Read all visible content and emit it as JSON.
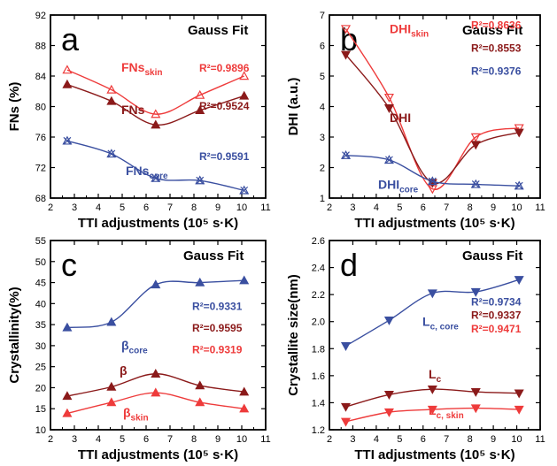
{
  "chart_data": [
    {
      "panel": "a",
      "type": "scatter",
      "fit_label": "Gauss Fit",
      "xlabel": "TTI adjustments (10⁵ s·K)",
      "ylabel": "FNs (%)",
      "xlim": [
        2,
        11
      ],
      "ylim": [
        68,
        92
      ],
      "xticks": [
        "2",
        "3",
        "4",
        "5",
        "6",
        "7",
        "8",
        "9",
        "10",
        "11"
      ],
      "yticks": [
        "68",
        "72",
        "76",
        "80",
        "84",
        "88",
        "92"
      ],
      "series": [
        {
          "name": "FNs",
          "sub": "skin",
          "color": "#ee3b3b",
          "marker": "triangle-up-open",
          "x": [
            2.7,
            4.55,
            6.4,
            8.25,
            10.1
          ],
          "y": [
            84.8,
            82.2,
            79.0,
            81.5,
            84.0
          ],
          "fit": [
            84.6,
            79.0,
            84.2
          ],
          "r2": "R²=0.9896"
        },
        {
          "name": "FNs",
          "sub": "",
          "color": "#8b1a1a",
          "marker": "triangle-up-filled",
          "x": [
            2.7,
            4.55,
            6.4,
            8.25,
            10.1
          ],
          "y": [
            82.9,
            80.7,
            77.6,
            79.5,
            81.4
          ],
          "fit": [
            82.6,
            77.6,
            81.4
          ],
          "r2": "R²=0.9524"
        },
        {
          "name": "FNs",
          "sub": "core",
          "color": "#3a4fa0",
          "marker": "x-triangle",
          "x": [
            2.7,
            4.55,
            6.4,
            8.25,
            10.1
          ],
          "y": [
            75.5,
            73.8,
            70.6,
            70.3,
            69.0
          ],
          "fit": [
            75.4,
            69.0
          ],
          "r2": "R²=0.9591"
        }
      ]
    },
    {
      "panel": "b",
      "type": "scatter",
      "fit_label": "Gauss Fit",
      "xlabel": "TTI adjustments (10⁵ s·K)",
      "ylabel": "DHI (a.u.)",
      "xlim": [
        2,
        11
      ],
      "ylim": [
        1,
        7
      ],
      "xticks": [
        "2",
        "3",
        "4",
        "5",
        "6",
        "7",
        "8",
        "9",
        "10",
        "11"
      ],
      "yticks": [
        "1",
        "2",
        "3",
        "4",
        "5",
        "6",
        "7"
      ],
      "series": [
        {
          "name": "DHI",
          "sub": "skin",
          "color": "#ee3b3b",
          "marker": "triangle-down-open",
          "x": [
            2.7,
            4.55,
            6.4,
            8.25,
            10.1
          ],
          "y": [
            6.55,
            4.3,
            1.3,
            3.0,
            3.3
          ],
          "r2": "R²=0.8636"
        },
        {
          "name": "DHI",
          "sub": "",
          "color": "#8b1a1a",
          "marker": "triangle-down-filled",
          "x": [
            2.7,
            4.55,
            6.4,
            8.25,
            10.1
          ],
          "y": [
            5.7,
            3.95,
            1.5,
            2.75,
            3.15
          ],
          "r2": "R²=0.8553"
        },
        {
          "name": "DHI",
          "sub": "core",
          "color": "#3a4fa0",
          "marker": "x-triangle",
          "x": [
            2.7,
            4.55,
            6.4,
            8.25,
            10.1
          ],
          "y": [
            2.4,
            2.25,
            1.55,
            1.45,
            1.4
          ],
          "r2": "R²=0.9376"
        }
      ]
    },
    {
      "panel": "c",
      "type": "scatter",
      "fit_label": "Gauss Fit",
      "xlabel": "TTI adjustments (10⁵ s·K)",
      "ylabel": "Crystallinity(%)",
      "xlim": [
        2,
        11
      ],
      "ylim": [
        10,
        55
      ],
      "xticks": [
        "2",
        "3",
        "4",
        "5",
        "6",
        "7",
        "8",
        "9",
        "10",
        "11"
      ],
      "yticks": [
        "10",
        "15",
        "20",
        "25",
        "30",
        "35",
        "40",
        "45",
        "50",
        "55"
      ],
      "series": [
        {
          "name": "β",
          "sub": "core",
          "color": "#3a4fa0",
          "marker": "triangle-up-filled",
          "x": [
            2.7,
            4.55,
            6.4,
            8.25,
            10.1
          ],
          "y": [
            34.3,
            35.6,
            44.5,
            45.0,
            45.5
          ],
          "r2": "R²=0.9331"
        },
        {
          "name": "β",
          "sub": "",
          "color": "#8b1a1a",
          "marker": "triangle-up-filled",
          "x": [
            2.7,
            4.55,
            6.4,
            8.25,
            10.1
          ],
          "y": [
            18.0,
            20.2,
            23.3,
            20.5,
            19.0
          ],
          "r2": "R²=0.9595"
        },
        {
          "name": "β",
          "sub": "skin",
          "color": "#ee3b3b",
          "marker": "triangle-up-filled",
          "x": [
            2.7,
            4.55,
            6.4,
            8.25,
            10.1
          ],
          "y": [
            13.9,
            16.5,
            18.8,
            16.5,
            15.0
          ],
          "r2": "R²=0.9319"
        }
      ]
    },
    {
      "panel": "d",
      "type": "scatter",
      "fit_label": "Gauss Fit",
      "xlabel": "TTI adjustments (10⁵ s·K)",
      "ylabel": "Crystallite size(nm)",
      "xlim": [
        2,
        11
      ],
      "ylim": [
        1.2,
        2.6
      ],
      "xticks": [
        "2",
        "3",
        "4",
        "5",
        "6",
        "7",
        "8",
        "9",
        "10",
        "11"
      ],
      "yticks": [
        "1.2",
        "1.4",
        "1.6",
        "1.8",
        "2.0",
        "2.2",
        "2.4",
        "2.6"
      ],
      "series": [
        {
          "name": "L",
          "sub": "c, core",
          "color": "#3a4fa0",
          "marker": "triangle-down-filled",
          "x": [
            2.7,
            4.55,
            6.4,
            8.25,
            10.1
          ],
          "y": [
            1.82,
            2.01,
            2.21,
            2.22,
            2.31
          ],
          "r2": "R²=0.9734"
        },
        {
          "name": "L",
          "sub": "c",
          "color": "#8b1a1a",
          "marker": "triangle-down-filled",
          "x": [
            2.7,
            4.55,
            6.4,
            8.25,
            10.1
          ],
          "y": [
            1.37,
            1.46,
            1.5,
            1.48,
            1.47
          ],
          "r2": "R²=0.9337"
        },
        {
          "name": "L",
          "sub": "c, skin",
          "color": "#ee3b3b",
          "marker": "triangle-down-filled",
          "x": [
            2.7,
            4.55,
            6.4,
            8.25,
            10.1
          ],
          "y": [
            1.26,
            1.33,
            1.35,
            1.36,
            1.35
          ],
          "r2": "R²=0.9471"
        }
      ]
    }
  ]
}
